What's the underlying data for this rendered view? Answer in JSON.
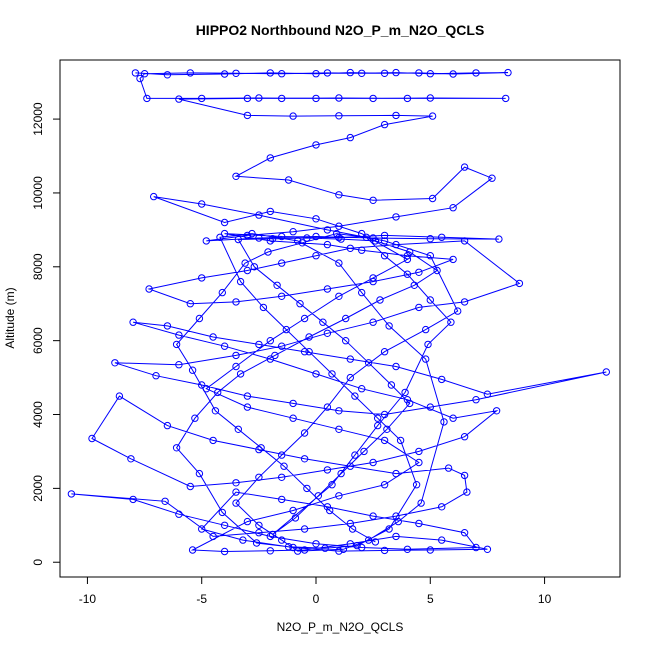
{
  "chart_data": {
    "type": "scatter",
    "title": "HIPPO2 Northbound N2O_P_m_N2O_QCLS",
    "xlabel": "N2O_P_m_N2O_QCLS",
    "ylabel": "Altitude (m)",
    "xlim": [
      -11.2,
      13.3
    ],
    "ylim": [
      -400,
      13600
    ],
    "x_ticks": [
      -10,
      -5,
      0,
      5,
      10
    ],
    "y_ticks": [
      0,
      2000,
      4000,
      6000,
      8000,
      10000,
      12000
    ],
    "grid": false,
    "legend": "none",
    "style": "points connected by lines",
    "series": [
      {
        "color": "#0000ff",
        "points": [
          [
            -7.9,
            13250
          ],
          [
            -6.5,
            13200
          ],
          [
            -4.0,
            13220
          ],
          [
            -2.0,
            13250
          ],
          [
            0.0,
            13230
          ],
          [
            1.5,
            13260
          ],
          [
            3.0,
            13240
          ],
          [
            4.5,
            13250
          ],
          [
            6.0,
            13220
          ],
          [
            8.4,
            13260
          ],
          [
            7.0,
            13250
          ],
          [
            5.0,
            13230
          ],
          [
            3.5,
            13260
          ],
          [
            2.0,
            13240
          ],
          [
            0.5,
            13250
          ],
          [
            -1.5,
            13230
          ],
          [
            -3.5,
            13240
          ],
          [
            -5.5,
            13250
          ],
          [
            -7.5,
            13230
          ],
          [
            -7.7,
            13100
          ],
          [
            -7.4,
            12560
          ],
          [
            -5.0,
            12560
          ],
          [
            -2.5,
            12570
          ],
          [
            0.0,
            12560
          ],
          [
            2.5,
            12560
          ],
          [
            5.0,
            12570
          ],
          [
            8.3,
            12560
          ],
          [
            4.0,
            12560
          ],
          [
            1.0,
            12570
          ],
          [
            -1.5,
            12560
          ],
          [
            -3.0,
            12560
          ],
          [
            -6.0,
            12540
          ],
          [
            -3.0,
            12100
          ],
          [
            -1.0,
            12080
          ],
          [
            1.0,
            12090
          ],
          [
            3.5,
            12100
          ],
          [
            5.1,
            12080
          ],
          [
            3.0,
            11850
          ],
          [
            1.5,
            11500
          ],
          [
            0.0,
            11300
          ],
          [
            -2.0,
            10950
          ],
          [
            -3.5,
            10450
          ],
          [
            -1.2,
            10350
          ],
          [
            1.0,
            9950
          ],
          [
            2.5,
            9800
          ],
          [
            5.1,
            9850
          ],
          [
            6.5,
            10700
          ],
          [
            7.7,
            10400
          ],
          [
            6.0,
            9600
          ],
          [
            3.5,
            9350
          ],
          [
            1.0,
            9100
          ],
          [
            -1.0,
            8950
          ],
          [
            -3.0,
            8850
          ],
          [
            -4.8,
            8700
          ],
          [
            -2.5,
            8780
          ],
          [
            0.0,
            8820
          ],
          [
            2.5,
            8780
          ],
          [
            5.0,
            8760
          ],
          [
            8.0,
            8750
          ],
          [
            5.5,
            8800
          ],
          [
            3.0,
            8850
          ],
          [
            1.0,
            8790
          ],
          [
            -1.5,
            8820
          ],
          [
            -4.0,
            8900
          ],
          [
            -2.0,
            8700
          ],
          [
            0.5,
            8600
          ],
          [
            2.0,
            8450
          ],
          [
            4.0,
            8300
          ],
          [
            6.0,
            8200
          ],
          [
            4.5,
            7850
          ],
          [
            2.5,
            7600
          ],
          [
            0.5,
            7400
          ],
          [
            -1.5,
            7200
          ],
          [
            -3.5,
            7050
          ],
          [
            -5.5,
            7000
          ],
          [
            -7.3,
            7400
          ],
          [
            -5.0,
            7700
          ],
          [
            -3.0,
            7900
          ],
          [
            -1.5,
            8100
          ],
          [
            0.0,
            8300
          ],
          [
            1.5,
            8500
          ],
          [
            3.5,
            8600
          ],
          [
            6.5,
            8700
          ],
          [
            8.9,
            7550
          ],
          [
            6.5,
            7050
          ],
          [
            4.5,
            6900
          ],
          [
            2.5,
            6500
          ],
          [
            0.5,
            6200
          ],
          [
            -1.5,
            5850
          ],
          [
            -3.5,
            5600
          ],
          [
            -6.0,
            5350
          ],
          [
            -8.8,
            5400
          ],
          [
            -7.0,
            5050
          ],
          [
            -5.0,
            4800
          ],
          [
            -3.0,
            4500
          ],
          [
            -1.0,
            4300
          ],
          [
            1.0,
            4100
          ],
          [
            3.0,
            4000
          ],
          [
            5.0,
            4200
          ],
          [
            7.0,
            4400
          ],
          [
            12.7,
            5150
          ],
          [
            7.5,
            4550
          ],
          [
            5.5,
            4950
          ],
          [
            3.5,
            5300
          ],
          [
            1.5,
            5500
          ],
          [
            -0.5,
            5700
          ],
          [
            -2.5,
            5900
          ],
          [
            -4.5,
            6100
          ],
          [
            -6.5,
            6400
          ],
          [
            -8.0,
            6500
          ],
          [
            -6.0,
            6150
          ],
          [
            -4.0,
            5850
          ],
          [
            -2.0,
            5500
          ],
          [
            0.0,
            5100
          ],
          [
            2.0,
            4700
          ],
          [
            4.0,
            4400
          ],
          [
            6.0,
            3900
          ],
          [
            7.9,
            4100
          ],
          [
            6.5,
            3400
          ],
          [
            4.5,
            3000
          ],
          [
            2.5,
            2700
          ],
          [
            0.5,
            2500
          ],
          [
            -1.5,
            2300
          ],
          [
            -3.5,
            2150
          ],
          [
            -5.5,
            2050
          ],
          [
            -8.1,
            2800
          ],
          [
            -9.8,
            3350
          ],
          [
            -8.6,
            4500
          ],
          [
            -6.5,
            3700
          ],
          [
            -4.5,
            3300
          ],
          [
            -2.5,
            3050
          ],
          [
            -0.5,
            2800
          ],
          [
            1.5,
            2600
          ],
          [
            3.5,
            2400
          ],
          [
            5.8,
            2550
          ],
          [
            6.5,
            2350
          ],
          [
            6.6,
            1900
          ],
          [
            5.5,
            1500
          ],
          [
            3.5,
            1250
          ],
          [
            1.5,
            1050
          ],
          [
            -0.5,
            900
          ],
          [
            -2.5,
            800
          ],
          [
            -4.5,
            700
          ],
          [
            -6.6,
            1650
          ],
          [
            -10.7,
            1850
          ],
          [
            -8.0,
            1700
          ],
          [
            -6.0,
            1300
          ],
          [
            -4.0,
            1000
          ],
          [
            -2.0,
            700
          ],
          [
            0.0,
            500
          ],
          [
            2.0,
            400
          ],
          [
            4.0,
            350
          ],
          [
            7.0,
            400
          ],
          [
            6.5,
            800
          ],
          [
            4.5,
            1050
          ],
          [
            2.5,
            1250
          ],
          [
            0.5,
            1500
          ],
          [
            -1.5,
            1700
          ],
          [
            -3.5,
            1900
          ],
          [
            -5.0,
            900
          ],
          [
            -3.2,
            600
          ],
          [
            -1.0,
            400
          ],
          [
            1.0,
            300
          ],
          [
            3.0,
            320
          ],
          [
            5.0,
            330
          ],
          [
            7.5,
            350
          ],
          [
            5.5,
            600
          ],
          [
            3.5,
            700
          ],
          [
            1.5,
            500
          ],
          [
            -0.5,
            330
          ],
          [
            -2.0,
            310
          ],
          [
            -4.0,
            290
          ],
          [
            -5.4,
            330
          ],
          [
            -3.0,
            1100
          ],
          [
            -1.0,
            1400
          ],
          [
            1.0,
            1800
          ],
          [
            3.0,
            2100
          ],
          [
            4.5,
            2700
          ],
          [
            3.0,
            3300
          ],
          [
            1.0,
            3600
          ],
          [
            -1.0,
            3900
          ],
          [
            -3.0,
            4200
          ],
          [
            -4.8,
            4700
          ],
          [
            -3.5,
            5300
          ],
          [
            -2.0,
            6000
          ],
          [
            -0.5,
            6600
          ],
          [
            1.0,
            7200
          ],
          [
            2.5,
            7700
          ],
          [
            4.0,
            8200
          ],
          [
            2.0,
            8900
          ],
          [
            0.0,
            9300
          ],
          [
            -2.0,
            9500
          ],
          [
            -4.0,
            9200
          ],
          [
            -7.1,
            9900
          ],
          [
            -5.0,
            9700
          ],
          [
            -2.5,
            9400
          ],
          [
            0.5,
            9000
          ],
          [
            3.0,
            8700
          ],
          [
            5.0,
            8300
          ],
          [
            6.2,
            6800
          ],
          [
            4.8,
            6300
          ],
          [
            3.0,
            5700
          ],
          [
            1.5,
            5000
          ],
          [
            0.5,
            4200
          ],
          [
            -0.5,
            3500
          ],
          [
            -1.5,
            2900
          ],
          [
            -2.5,
            2300
          ],
          [
            -3.5,
            1600
          ],
          [
            -2.5,
            1000
          ],
          [
            -1.5,
            600
          ],
          [
            -0.8,
            300
          ],
          [
            1.2,
            350
          ],
          [
            2.3,
            600
          ],
          [
            3.6,
            1100
          ],
          [
            4.6,
            1600
          ],
          [
            5.6,
            3800
          ],
          [
            4.8,
            5500
          ],
          [
            3.2,
            6400
          ],
          [
            2.0,
            7300
          ],
          [
            1.0,
            8100
          ],
          [
            -0.8,
            8700
          ],
          [
            -2.8,
            8900
          ],
          [
            -4.2,
            8800
          ],
          [
            -3.3,
            7600
          ],
          [
            -2.3,
            6900
          ],
          [
            -1.3,
            6300
          ],
          [
            -0.3,
            5700
          ],
          [
            0.7,
            5100
          ],
          [
            1.7,
            4500
          ],
          [
            2.7,
            3900
          ],
          [
            3.7,
            3300
          ],
          [
            4.4,
            2100
          ],
          [
            3.2,
            900
          ],
          [
            1.8,
            450
          ],
          [
            0.4,
            380
          ],
          [
            -1.2,
            420
          ],
          [
            -2.6,
            520
          ],
          [
            -4.1,
            1350
          ],
          [
            -5.1,
            2400
          ],
          [
            -6.1,
            3100
          ],
          [
            -5.3,
            3900
          ],
          [
            -4.3,
            4600
          ],
          [
            -3.3,
            5100
          ],
          [
            -1.8,
            5600
          ],
          [
            -0.3,
            6100
          ],
          [
            1.3,
            6600
          ],
          [
            2.8,
            7100
          ],
          [
            4.3,
            7500
          ],
          [
            5.3,
            7900
          ],
          [
            4.1,
            8400
          ],
          [
            2.6,
            8700
          ],
          [
            1.1,
            8750
          ],
          [
            -0.4,
            8780
          ],
          [
            -1.9,
            8760
          ],
          [
            -3.4,
            8740
          ],
          [
            -2.7,
            8000
          ],
          [
            -1.7,
            7500
          ],
          [
            -0.7,
            7000
          ],
          [
            0.3,
            6500
          ],
          [
            1.3,
            6000
          ],
          [
            2.3,
            5400
          ],
          [
            3.3,
            4800
          ],
          [
            4.1,
            4300
          ],
          [
            3.1,
            3600
          ],
          [
            2.1,
            3000
          ],
          [
            1.1,
            2400
          ],
          [
            0.1,
            1800
          ],
          [
            -0.9,
            1200
          ],
          [
            -1.9,
            750
          ],
          [
            0.7,
            2100
          ],
          [
            1.7,
            2900
          ],
          [
            2.7,
            3700
          ],
          [
            3.9,
            4600
          ],
          [
            4.9,
            5900
          ],
          [
            5.9,
            6500
          ],
          [
            5.0,
            7100
          ],
          [
            4.0,
            7800
          ],
          [
            3.0,
            8300
          ],
          [
            2.2,
            8800
          ],
          [
            0.9,
            8900
          ],
          [
            -0.6,
            8650
          ],
          [
            -2.1,
            8400
          ],
          [
            -3.1,
            8100
          ],
          [
            -4.1,
            7300
          ],
          [
            -5.1,
            6600
          ],
          [
            -6.1,
            5900
          ],
          [
            -5.4,
            5200
          ],
          [
            -4.4,
            4100
          ],
          [
            -3.4,
            3600
          ],
          [
            -2.4,
            3100
          ],
          [
            -1.4,
            2600
          ],
          [
            -0.4,
            2000
          ],
          [
            0.6,
            1400
          ],
          [
            1.6,
            900
          ],
          [
            2.6,
            550
          ]
        ]
      }
    ]
  }
}
